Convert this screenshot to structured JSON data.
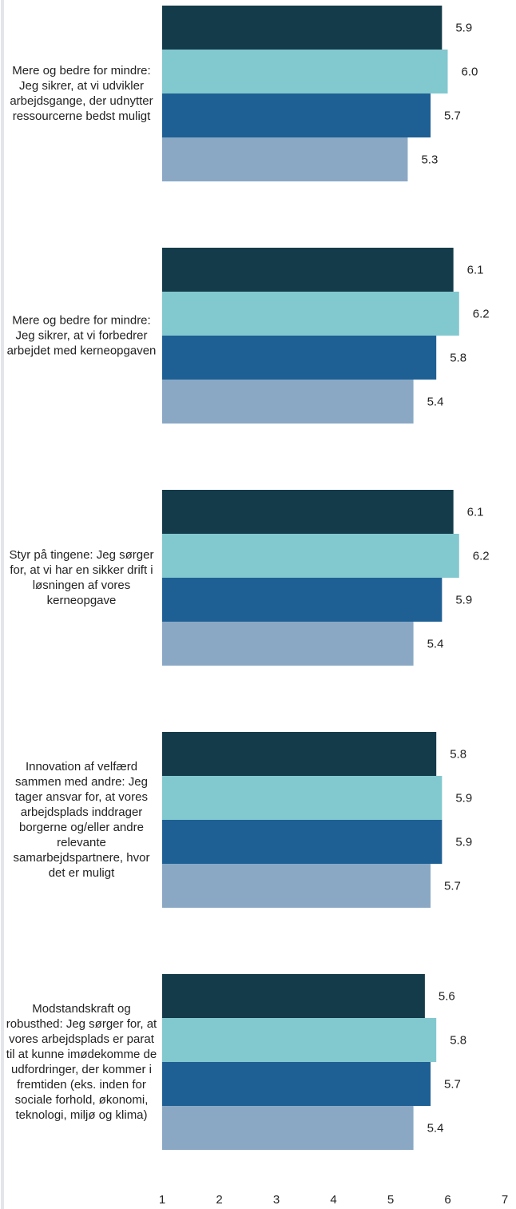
{
  "chart_data": {
    "type": "barh",
    "categories": [
      "Mere og bedre for mindre: Jeg sikrer, at vi udvikler arbejdsgange, der udnytter ressourcerne bedst muligt",
      "Mere og bedre for mindre: Jeg sikrer, at vi forbedrer arbejdet med kerneopgaven",
      "Styr på tingene: Jeg sørger for, at vi har en sikker drift i løsningen af vores kerneopgave",
      "Innovation af velfærd sammen med andre: Jeg tager ansvar for, at vores arbejdsplads inddrager borgerne og/eller andre relevante samarbejdspartnere, hvor det er muligt",
      "Modstandskraft og robusthed: Jeg sørger for, at vores arbejdsplads er parat til at kunne imødekomme de udfordringer, der kommer i fremtiden (eks. inden for sociale forhold, økonomi, teknologi, miljø og klima)"
    ],
    "series": [
      {
        "color": "#143b4a",
        "values": [
          5.9,
          6.1,
          6.1,
          5.8,
          5.6
        ],
        "value_labels": [
          "5.9",
          "6.1",
          "6.1",
          "5.8",
          "5.6"
        ]
      },
      {
        "color": "#82c8cf",
        "values": [
          6.0,
          6.2,
          6.2,
          5.9,
          5.8
        ],
        "value_labels": [
          "6.0",
          "6.2",
          "6.2",
          "5.9",
          "5.8"
        ]
      },
      {
        "color": "#1e6094",
        "values": [
          5.7,
          5.8,
          5.9,
          5.9,
          5.7
        ],
        "value_labels": [
          "5.7",
          "5.8",
          "5.9",
          "5.9",
          "5.7"
        ]
      },
      {
        "color": "#8aa8c4",
        "values": [
          5.3,
          5.4,
          5.4,
          5.7,
          5.4
        ],
        "value_labels": [
          "5.3",
          "5.4",
          "5.4",
          "5.7",
          "5.4"
        ]
      }
    ],
    "xlim": [
      1,
      7
    ],
    "xticks": [
      1,
      2,
      3,
      4,
      5,
      6,
      7
    ]
  }
}
